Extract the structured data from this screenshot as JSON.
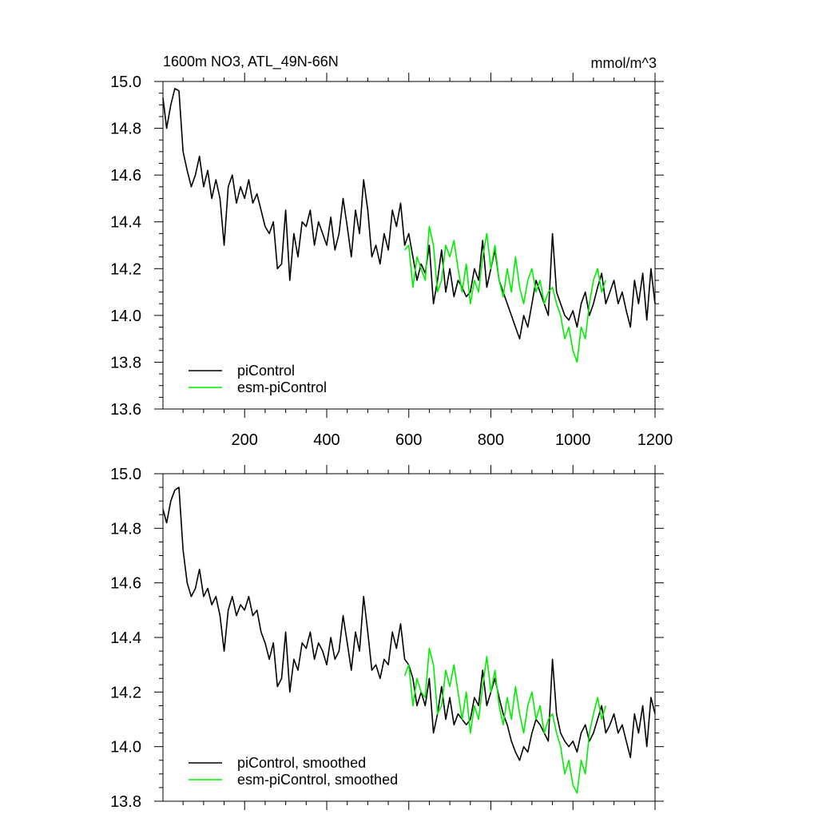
{
  "chart_data": [
    {
      "type": "line",
      "title": "1600m NO3, ATL_49N-66N",
      "units": "mmol/m^3",
      "xlim": [
        1,
        1200
      ],
      "ylim": [
        13.6,
        15.0
      ],
      "yticks": [
        "15.0",
        "14.8",
        "14.6",
        "14.4",
        "14.2",
        "14.0",
        "13.8",
        "13.6"
      ],
      "xticks": [
        "200",
        "400",
        "600",
        "800",
        "1000",
        "1200"
      ],
      "grid": false,
      "legend_position": "bottom-left",
      "series": [
        {
          "name": "piControl",
          "color": "#000000",
          "x": [
            1,
            10,
            20,
            30,
            40,
            50,
            60,
            70,
            80,
            90,
            100,
            110,
            120,
            130,
            140,
            150,
            160,
            170,
            180,
            190,
            200,
            210,
            220,
            230,
            240,
            250,
            260,
            270,
            280,
            290,
            300,
            310,
            320,
            330,
            340,
            350,
            360,
            370,
            380,
            390,
            400,
            410,
            420,
            430,
            440,
            450,
            460,
            470,
            480,
            490,
            500,
            510,
            520,
            530,
            540,
            550,
            560,
            570,
            580,
            590,
            600,
            610,
            620,
            630,
            640,
            650,
            660,
            670,
            680,
            690,
            700,
            710,
            720,
            730,
            740,
            750,
            760,
            770,
            780,
            790,
            800,
            810,
            820,
            830,
            840,
            850,
            860,
            870,
            880,
            890,
            900,
            910,
            920,
            930,
            940,
            950,
            960,
            970,
            980,
            990,
            1000,
            1010,
            1020,
            1030,
            1040,
            1050,
            1060,
            1070,
            1080,
            1090,
            1100,
            1110,
            1120,
            1130,
            1140,
            1150,
            1160,
            1170,
            1180,
            1190,
            1200
          ],
          "y": [
            14.93,
            14.8,
            14.9,
            14.97,
            14.96,
            14.7,
            14.62,
            14.55,
            14.6,
            14.68,
            14.55,
            14.62,
            14.5,
            14.58,
            14.5,
            14.3,
            14.55,
            14.6,
            14.48,
            14.55,
            14.5,
            14.58,
            14.48,
            14.52,
            14.45,
            14.38,
            14.35,
            14.4,
            14.2,
            14.22,
            14.45,
            14.15,
            14.35,
            14.25,
            14.4,
            14.38,
            14.45,
            14.3,
            14.4,
            14.35,
            14.3,
            14.42,
            14.28,
            14.35,
            14.5,
            14.38,
            14.25,
            14.45,
            14.35,
            14.58,
            14.45,
            14.25,
            14.3,
            14.22,
            14.35,
            14.28,
            14.45,
            14.38,
            14.48,
            14.3,
            14.35,
            14.25,
            14.15,
            14.22,
            14.18,
            14.3,
            14.05,
            14.15,
            14.28,
            14.1,
            14.2,
            14.08,
            14.15,
            14.12,
            14.08,
            14.1,
            14.2,
            14.15,
            14.32,
            14.12,
            14.2,
            14.28,
            14.15,
            14.1,
            14.05,
            14.0,
            13.95,
            13.9,
            14.0,
            13.95,
            14.05,
            14.15,
            14.1,
            14.05,
            14.0,
            14.35,
            14.1,
            14.05,
            14.0,
            13.98,
            14.02,
            13.95,
            14.05,
            14.1,
            14.0,
            14.05,
            14.12,
            14.18,
            14.05,
            14.1,
            14.15,
            14.05,
            14.1,
            14.02,
            13.95,
            14.15,
            14.05,
            14.18,
            13.98,
            14.2,
            14.05
          ]
        },
        {
          "name": "esm-piControl",
          "color": "#00ee00",
          "x": [
            590,
            600,
            610,
            620,
            630,
            640,
            650,
            660,
            670,
            680,
            690,
            700,
            710,
            720,
            730,
            740,
            750,
            760,
            770,
            780,
            790,
            800,
            810,
            820,
            830,
            840,
            850,
            860,
            870,
            880,
            890,
            900,
            910,
            920,
            930,
            940,
            950,
            960,
            970,
            980,
            990,
            1000,
            1010,
            1020,
            1030,
            1040,
            1050,
            1060,
            1070,
            1080
          ],
          "y": [
            14.28,
            14.3,
            14.12,
            14.25,
            14.2,
            14.15,
            14.38,
            14.3,
            14.1,
            14.15,
            14.3,
            14.25,
            14.32,
            14.2,
            14.1,
            14.22,
            14.05,
            14.15,
            14.1,
            14.25,
            14.35,
            14.2,
            14.3,
            14.15,
            14.08,
            14.2,
            14.1,
            14.25,
            14.12,
            14.05,
            14.15,
            14.2,
            14.1,
            14.15,
            14.05,
            14.1,
            14.12,
            14.05,
            14.0,
            13.9,
            13.95,
            13.85,
            13.8,
            13.95,
            13.9,
            14.05,
            14.15,
            14.2,
            14.1,
            14.15
          ]
        }
      ]
    },
    {
      "type": "line",
      "title": "",
      "xlim": [
        1,
        1200
      ],
      "ylim": [
        13.8,
        15.0
      ],
      "yticks": [
        "15.0",
        "14.8",
        "14.6",
        "14.4",
        "14.2",
        "14.0",
        "13.8"
      ],
      "grid": false,
      "legend_position": "bottom-left",
      "series": [
        {
          "name": "piControl, smoothed",
          "color": "#000000",
          "x": [
            1,
            10,
            20,
            30,
            40,
            50,
            60,
            70,
            80,
            90,
            100,
            110,
            120,
            130,
            140,
            150,
            160,
            170,
            180,
            190,
            200,
            210,
            220,
            230,
            240,
            250,
            260,
            270,
            280,
            290,
            300,
            310,
            320,
            330,
            340,
            350,
            360,
            370,
            380,
            390,
            400,
            410,
            420,
            430,
            440,
            450,
            460,
            470,
            480,
            490,
            500,
            510,
            520,
            530,
            540,
            550,
            560,
            570,
            580,
            590,
            600,
            610,
            620,
            630,
            640,
            650,
            660,
            670,
            680,
            690,
            700,
            710,
            720,
            730,
            740,
            750,
            760,
            770,
            780,
            790,
            800,
            810,
            820,
            830,
            840,
            850,
            860,
            870,
            880,
            890,
            900,
            910,
            920,
            930,
            940,
            950,
            960,
            970,
            980,
            990,
            1000,
            1010,
            1020,
            1030,
            1040,
            1050,
            1060,
            1070,
            1080,
            1090,
            1100,
            1110,
            1120,
            1130,
            1140,
            1150,
            1160,
            1170,
            1180,
            1190,
            1200
          ],
          "y": [
            14.87,
            14.82,
            14.9,
            14.94,
            14.95,
            14.72,
            14.6,
            14.55,
            14.58,
            14.65,
            14.55,
            14.58,
            14.52,
            14.55,
            14.48,
            14.35,
            14.5,
            14.55,
            14.48,
            14.52,
            14.5,
            14.55,
            14.48,
            14.5,
            14.42,
            14.38,
            14.32,
            14.38,
            14.22,
            14.25,
            14.42,
            14.2,
            14.32,
            14.28,
            14.38,
            14.36,
            14.42,
            14.32,
            14.38,
            14.35,
            14.3,
            14.4,
            14.32,
            14.35,
            14.48,
            14.38,
            14.28,
            14.42,
            14.35,
            14.55,
            14.42,
            14.28,
            14.3,
            14.25,
            14.32,
            14.3,
            14.42,
            14.36,
            14.45,
            14.32,
            14.3,
            14.25,
            14.15,
            14.2,
            14.15,
            14.25,
            14.05,
            14.12,
            14.22,
            14.1,
            14.18,
            14.08,
            14.12,
            14.1,
            14.08,
            14.1,
            14.18,
            14.15,
            14.28,
            14.15,
            14.2,
            14.25,
            14.18,
            14.12,
            14.08,
            14.02,
            13.98,
            13.95,
            14.0,
            13.98,
            14.05,
            14.1,
            14.08,
            14.05,
            14.02,
            14.32,
            14.12,
            14.05,
            14.02,
            14.0,
            14.02,
            13.98,
            14.05,
            14.08,
            14.02,
            14.05,
            14.1,
            14.15,
            14.05,
            14.08,
            14.12,
            14.05,
            14.08,
            14.02,
            13.96,
            14.12,
            14.05,
            14.15,
            14.0,
            14.18,
            14.12
          ]
        },
        {
          "name": "esm-piControl, smoothed",
          "color": "#00ee00",
          "x": [
            590,
            600,
            610,
            620,
            630,
            640,
            650,
            660,
            670,
            680,
            690,
            700,
            710,
            720,
            730,
            740,
            750,
            760,
            770,
            780,
            790,
            800,
            810,
            820,
            830,
            840,
            850,
            860,
            870,
            880,
            890,
            900,
            910,
            920,
            930,
            940,
            950,
            960,
            970,
            980,
            990,
            1000,
            1010,
            1020,
            1030,
            1040,
            1050,
            1060,
            1070,
            1080
          ],
          "y": [
            14.26,
            14.3,
            14.15,
            14.25,
            14.2,
            14.18,
            14.36,
            14.3,
            14.12,
            14.15,
            14.28,
            14.22,
            14.3,
            14.2,
            14.1,
            14.2,
            14.05,
            14.15,
            14.1,
            14.22,
            14.33,
            14.2,
            14.28,
            14.15,
            14.08,
            14.18,
            14.1,
            14.22,
            14.12,
            14.05,
            14.15,
            14.2,
            14.1,
            14.15,
            14.05,
            14.1,
            14.12,
            14.05,
            14.0,
            13.9,
            13.95,
            13.86,
            13.83,
            13.95,
            13.9,
            14.05,
            14.12,
            14.18,
            14.1,
            14.15
          ]
        }
      ]
    }
  ]
}
